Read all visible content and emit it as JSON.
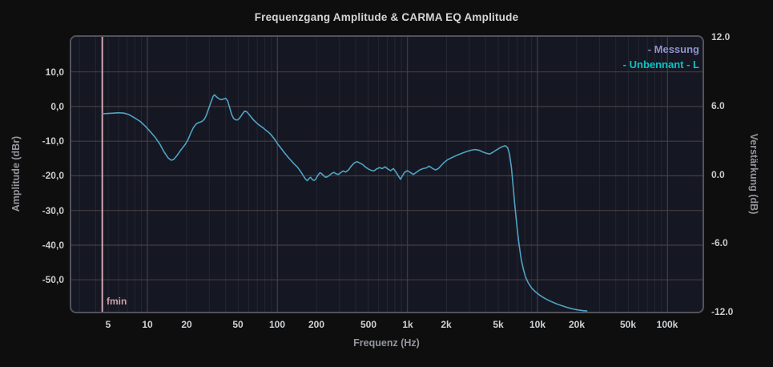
{
  "title": "Frequenzgang Amplitude & CARMA EQ Amplitude",
  "marker": {
    "label": "fmin",
    "hz": 4.5,
    "line_color": "#d5a7b1",
    "label_color": "#cf9fa8"
  },
  "style": {
    "page_bg": "#0e0e0e",
    "plot_bg": "#151722",
    "plot_border": "#52525b",
    "grid_major_h": "#453e43",
    "grid_major_v": "#383b45",
    "grid_minor_v": "#242733",
    "title_text": "#d6d6d6",
    "tick_text": "#c9cacd",
    "x_tick_text": "#ced2d6",
    "axis_title_text": "#94969d"
  },
  "chart_data": {
    "type": "line",
    "title": "Frequenzgang Amplitude & CARMA EQ Amplitude",
    "grid": "on",
    "x_axis": {
      "label": "Frequenz (Hz)",
      "scale": "log",
      "range_hz": [
        2.6,
        186000
      ],
      "tick_hz": [
        5,
        10,
        20,
        50,
        100,
        200,
        500,
        1000,
        2000,
        5000,
        10000,
        20000,
        50000,
        100000
      ],
      "tick_labels": [
        "5",
        "10",
        "20",
        "50",
        "100",
        "200",
        "500",
        "1k",
        "2k",
        "5k",
        "10k",
        "20k",
        "50k",
        "100k"
      ],
      "major_decades_hz": [
        10,
        100,
        1000,
        10000,
        100000
      ]
    },
    "y_left": {
      "label": "Amplitude (dBr)",
      "range": [
        -59.2,
        20.1
      ],
      "tick_values": [
        10,
        0,
        -10,
        -20,
        -30,
        -40,
        -50
      ],
      "tick_labels": [
        "10,0",
        "0,0",
        "-10,0",
        "-20,0",
        "-30,0",
        "-40,0",
        "-50,0"
      ]
    },
    "y_right": {
      "label": "Verstärkung (dB)",
      "range": [
        -12,
        12
      ],
      "tick_values": [
        12,
        6,
        0,
        -6,
        -12
      ],
      "tick_labels": [
        "12.0",
        "6.0",
        "0.0",
        "-6.0",
        "-12.0"
      ]
    },
    "legend": {
      "position": "top-right",
      "entries": [
        {
          "label": "- Messung",
          "color": "#9193cb"
        },
        {
          "label": "- Unbennant - L",
          "color": "#0cc2c4"
        }
      ]
    },
    "marker_fmin_hz": 4.5,
    "series": [
      {
        "name": "Unbennant - L",
        "color": "#4fa3c6",
        "unit": "dBr",
        "points_hz_db": [
          [
            4.5,
            -2.1
          ],
          [
            5,
            -2.0
          ],
          [
            5.5,
            -1.9
          ],
          [
            6,
            -1.8
          ],
          [
            6.6,
            -1.9
          ],
          [
            7.2,
            -2.3
          ],
          [
            8,
            -3.3
          ],
          [
            8.8,
            -4.3
          ],
          [
            9.6,
            -5.6
          ],
          [
            10.5,
            -7.2
          ],
          [
            11.5,
            -8.9
          ],
          [
            12.5,
            -10.9
          ],
          [
            13.5,
            -13.2
          ],
          [
            14.5,
            -14.9
          ],
          [
            15.3,
            -15.5
          ],
          [
            16,
            -15.2
          ],
          [
            17,
            -14.0
          ],
          [
            18.2,
            -12.4
          ],
          [
            19.5,
            -11.0
          ],
          [
            20.5,
            -9.6
          ],
          [
            21.5,
            -7.8
          ],
          [
            22.5,
            -6.2
          ],
          [
            23.5,
            -5.2
          ],
          [
            24.5,
            -4.7
          ],
          [
            25.5,
            -4.5
          ],
          [
            26.5,
            -4.2
          ],
          [
            27.5,
            -3.6
          ],
          [
            28.5,
            -2.4
          ],
          [
            29.5,
            -0.8
          ],
          [
            30.8,
            1.2
          ],
          [
            32,
            2.9
          ],
          [
            32.8,
            3.4
          ],
          [
            33.8,
            2.9
          ],
          [
            35,
            2.4
          ],
          [
            36.2,
            2.1
          ],
          [
            37.5,
            2.0
          ],
          [
            38.8,
            2.2
          ],
          [
            40,
            2.4
          ],
          [
            41.5,
            1.6
          ],
          [
            43,
            -0.4
          ],
          [
            44.5,
            -2.3
          ],
          [
            46,
            -3.4
          ],
          [
            47.5,
            -3.8
          ],
          [
            49,
            -3.9
          ],
          [
            50.5,
            -3.6
          ],
          [
            52,
            -3.0
          ],
          [
            54,
            -2.1
          ],
          [
            56,
            -1.3
          ],
          [
            58,
            -1.5
          ],
          [
            60,
            -2.1
          ],
          [
            63,
            -3.1
          ],
          [
            66,
            -4.0
          ],
          [
            70,
            -4.9
          ],
          [
            74,
            -5.6
          ],
          [
            78,
            -6.2
          ],
          [
            82,
            -6.9
          ],
          [
            86,
            -7.5
          ],
          [
            90,
            -8.3
          ],
          [
            95,
            -9.4
          ],
          [
            100,
            -10.7
          ],
          [
            106,
            -11.9
          ],
          [
            112,
            -13.1
          ],
          [
            119,
            -14.3
          ],
          [
            126,
            -15.4
          ],
          [
            134,
            -16.5
          ],
          [
            142,
            -17.4
          ],
          [
            150,
            -18.6
          ],
          [
            158,
            -19.9
          ],
          [
            165,
            -21.0
          ],
          [
            170,
            -21.4
          ],
          [
            175,
            -20.8
          ],
          [
            180,
            -20.4
          ],
          [
            186,
            -21.1
          ],
          [
            192,
            -21.3
          ],
          [
            198,
            -20.9
          ],
          [
            205,
            -19.8
          ],
          [
            212,
            -19.1
          ],
          [
            218,
            -19.3
          ],
          [
            226,
            -19.9
          ],
          [
            234,
            -20.4
          ],
          [
            242,
            -20.3
          ],
          [
            252,
            -19.8
          ],
          [
            262,
            -19.3
          ],
          [
            272,
            -19.0
          ],
          [
            283,
            -19.4
          ],
          [
            294,
            -19.6
          ],
          [
            306,
            -19.1
          ],
          [
            320,
            -18.6
          ],
          [
            335,
            -18.9
          ],
          [
            352,
            -18.3
          ],
          [
            370,
            -17.2
          ],
          [
            390,
            -16.3
          ],
          [
            410,
            -15.9
          ],
          [
            430,
            -16.3
          ],
          [
            452,
            -16.7
          ],
          [
            476,
            -17.5
          ],
          [
            500,
            -18.0
          ],
          [
            525,
            -18.4
          ],
          [
            552,
            -18.6
          ],
          [
            580,
            -18.0
          ],
          [
            610,
            -17.6
          ],
          [
            640,
            -17.9
          ],
          [
            672,
            -17.4
          ],
          [
            706,
            -18.0
          ],
          [
            742,
            -18.5
          ],
          [
            780,
            -17.9
          ],
          [
            820,
            -19.0
          ],
          [
            860,
            -20.3
          ],
          [
            885,
            -21.0
          ],
          [
            915,
            -20.0
          ],
          [
            950,
            -19.0
          ],
          [
            1000,
            -18.5
          ],
          [
            1050,
            -19.0
          ],
          [
            1110,
            -19.6
          ],
          [
            1170,
            -19.0
          ],
          [
            1240,
            -18.3
          ],
          [
            1320,
            -17.9
          ],
          [
            1400,
            -17.7
          ],
          [
            1470,
            -17.2
          ],
          [
            1550,
            -17.8
          ],
          [
            1640,
            -18.3
          ],
          [
            1730,
            -17.9
          ],
          [
            1820,
            -17.0
          ],
          [
            1920,
            -16.1
          ],
          [
            2030,
            -15.4
          ],
          [
            2150,
            -14.9
          ],
          [
            2300,
            -14.4
          ],
          [
            2500,
            -13.8
          ],
          [
            2700,
            -13.3
          ],
          [
            2900,
            -12.9
          ],
          [
            3100,
            -12.6
          ],
          [
            3300,
            -12.4
          ],
          [
            3550,
            -12.6
          ],
          [
            3800,
            -13.1
          ],
          [
            4050,
            -13.5
          ],
          [
            4300,
            -13.7
          ],
          [
            4550,
            -13.2
          ],
          [
            4800,
            -12.6
          ],
          [
            5050,
            -12.1
          ],
          [
            5350,
            -11.6
          ],
          [
            5650,
            -11.3
          ],
          [
            5900,
            -11.9
          ],
          [
            6100,
            -13.8
          ],
          [
            6300,
            -17.5
          ],
          [
            6500,
            -23.0
          ],
          [
            6700,
            -28.5
          ],
          [
            6950,
            -34.5
          ],
          [
            7200,
            -39.5
          ],
          [
            7500,
            -44.0
          ],
          [
            7800,
            -47.0
          ],
          [
            8100,
            -49.2
          ],
          [
            8500,
            -50.9
          ],
          [
            9000,
            -52.3
          ],
          [
            9600,
            -53.4
          ],
          [
            10300,
            -54.3
          ],
          [
            11100,
            -55.1
          ],
          [
            12000,
            -55.8
          ],
          [
            13000,
            -56.4
          ],
          [
            14200,
            -57.0
          ],
          [
            15500,
            -57.5
          ],
          [
            17000,
            -58.0
          ],
          [
            18700,
            -58.4
          ],
          [
            20500,
            -58.7
          ],
          [
            22500,
            -58.9
          ],
          [
            24000,
            -59.0
          ]
        ]
      }
    ]
  }
}
